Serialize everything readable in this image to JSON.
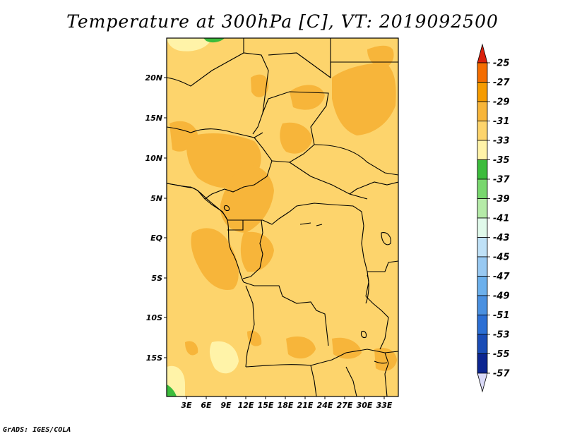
{
  "title": "Temperature at 300hPa [C], VT: 2019092500",
  "footer": "GrADS: IGES/COLA",
  "map": {
    "lat_ticks": [
      "20N",
      "15N",
      "10N",
      "5N",
      "EQ",
      "5S",
      "10S",
      "15S"
    ],
    "lon_ticks": [
      "3E",
      "6E",
      "9E",
      "12E",
      "15E",
      "18E",
      "21E",
      "24E",
      "27E",
      "30E",
      "33E"
    ]
  },
  "colorbar": {
    "labels": [
      "-25",
      "-27",
      "-29",
      "-31",
      "-33",
      "-35",
      "-37",
      "-39",
      "-41",
      "-43",
      "-45",
      "-47",
      "-49",
      "-51",
      "-53",
      "-55",
      "-57"
    ],
    "colors": [
      "#e8340c",
      "#f46d00",
      "#f59b00",
      "#f7b53a",
      "#fdd46c",
      "#fff3a8",
      "#3cbc3c",
      "#78d76e",
      "#b5eba8",
      "#e0f9ea",
      "#bfe1f7",
      "#98c9f2",
      "#6cb0ec",
      "#4a90e0",
      "#2c6fd4",
      "#1a4cb6",
      "#0c2590"
    ],
    "top_color": "#d9200c",
    "bottom_color": "#d9d9f7"
  }
}
